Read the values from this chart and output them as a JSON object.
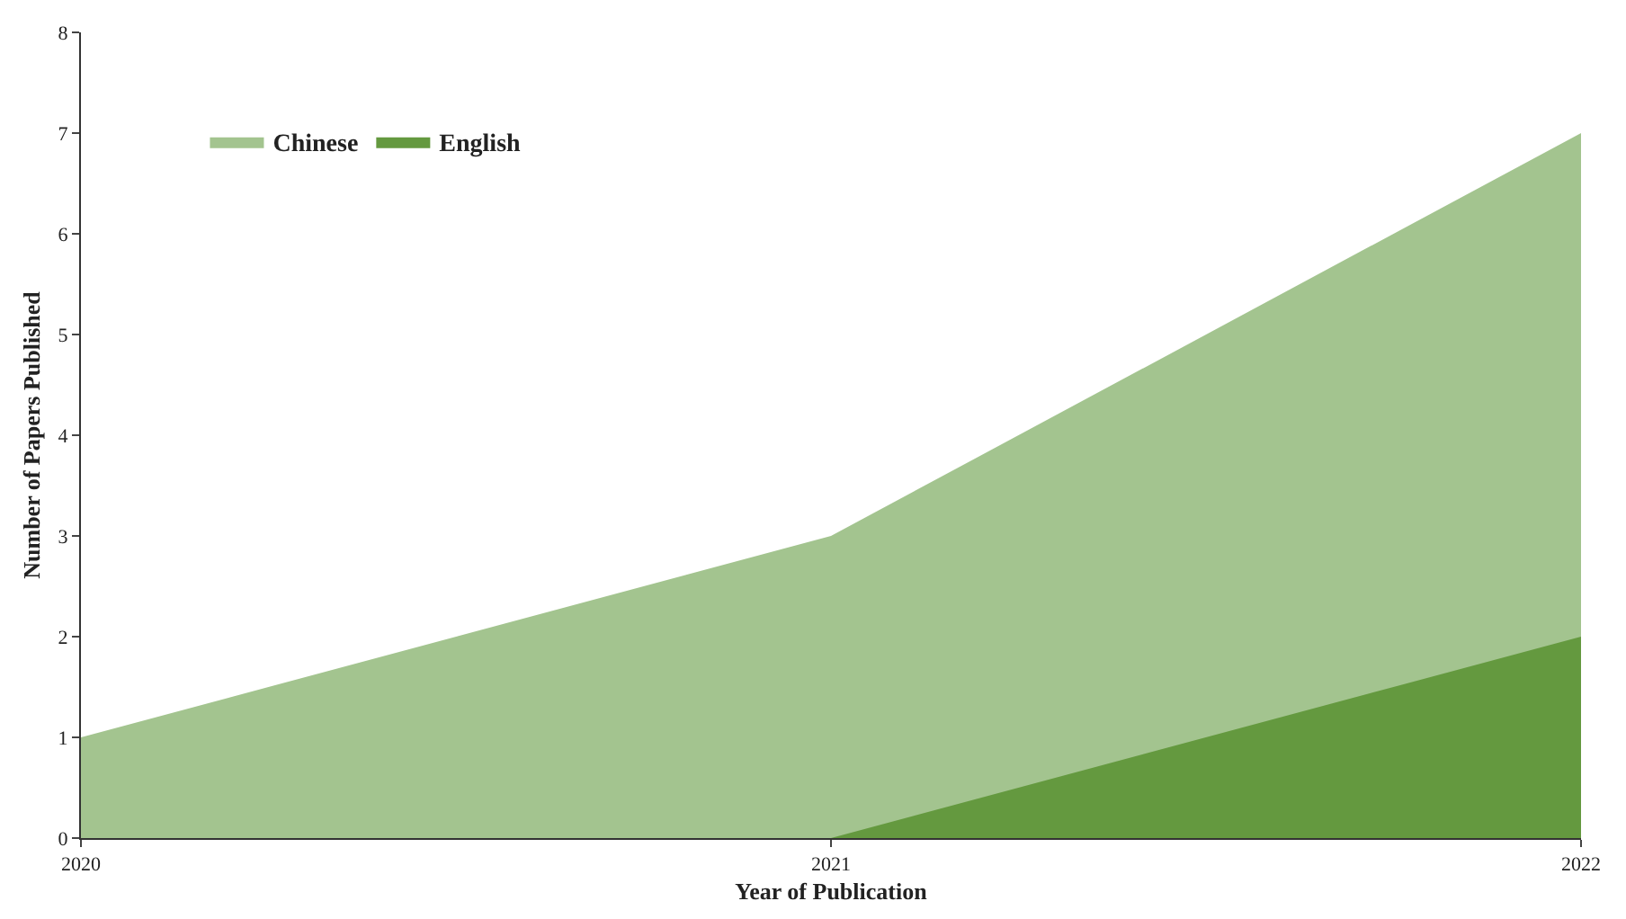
{
  "chart_data": {
    "type": "area",
    "xlabel": "Year of Publication",
    "ylabel": "Number of Papers Published",
    "x": [
      2020,
      2021,
      2022
    ],
    "series": [
      {
        "name": "Chinese",
        "color": "#a3c48f",
        "values": [
          1,
          3,
          7
        ]
      },
      {
        "name": "English",
        "color": "#64993f",
        "values": [
          0,
          0,
          2
        ]
      }
    ],
    "xlim": [
      2020,
      2022
    ],
    "xticks": [
      2020,
      2021,
      2022
    ],
    "ylim": [
      0,
      8
    ],
    "yticks": [
      0,
      1,
      2,
      3,
      4,
      5,
      6,
      7,
      8
    ],
    "legend": "top left"
  }
}
